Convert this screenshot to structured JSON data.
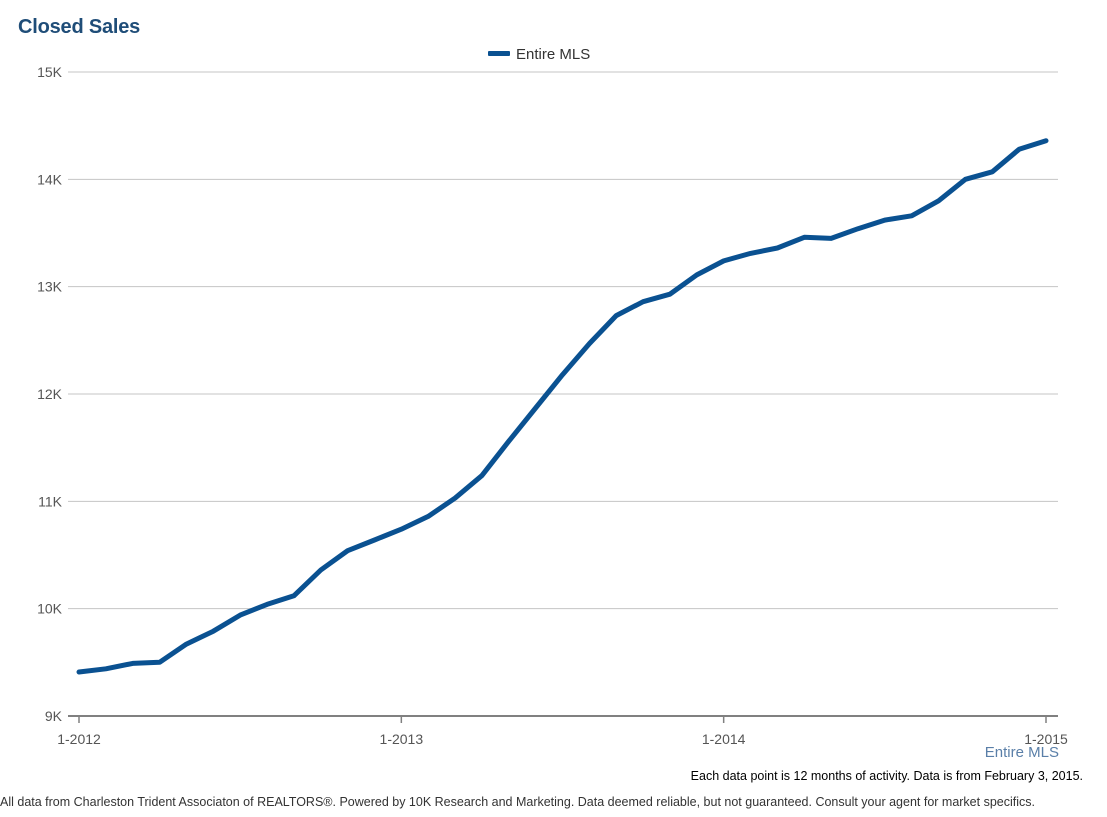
{
  "chart_data": {
    "type": "line",
    "title": "Closed Sales",
    "xlabel": "",
    "ylabel": "",
    "ylim": [
      9000,
      15000
    ],
    "y_ticks": [
      {
        "value": 9000,
        "label": "9K"
      },
      {
        "value": 10000,
        "label": "10K"
      },
      {
        "value": 11000,
        "label": "11K"
      },
      {
        "value": 12000,
        "label": "12K"
      },
      {
        "value": 13000,
        "label": "13K"
      },
      {
        "value": 14000,
        "label": "14K"
      },
      {
        "value": 15000,
        "label": "15K"
      }
    ],
    "x_ticks": [
      {
        "index": 0,
        "label": "1-2012"
      },
      {
        "index": 12,
        "label": "1-2013"
      },
      {
        "index": 24,
        "label": "1-2014"
      },
      {
        "index": 36,
        "label": "1-2015"
      }
    ],
    "x_range": [
      0,
      36
    ],
    "grid": true,
    "legend_position": "top-center",
    "series": [
      {
        "name": "Entire MLS",
        "color": "#0a5191",
        "values": [
          9410,
          9440,
          9490,
          9500,
          9670,
          9790,
          9940,
          10040,
          10120,
          10360,
          10540,
          10640,
          10740,
          10860,
          11030,
          11240,
          11560,
          11870,
          12180,
          12470,
          12730,
          12860,
          12930,
          13110,
          13240,
          13310,
          13360,
          13460,
          13450,
          13540,
          13620,
          13660,
          13800,
          14000,
          14070,
          14280,
          14360
        ]
      }
    ]
  },
  "footer": {
    "source_name": "Entire MLS",
    "note": "Each data point is 12 months of activity. Data is from February 3, 2015.",
    "disclaimer": "All data from Charleston Trident Associaton of REALTORS®. Powered by 10K Research and Marketing. Data deemed reliable, but not guaranteed. Consult your agent for market specifics."
  }
}
